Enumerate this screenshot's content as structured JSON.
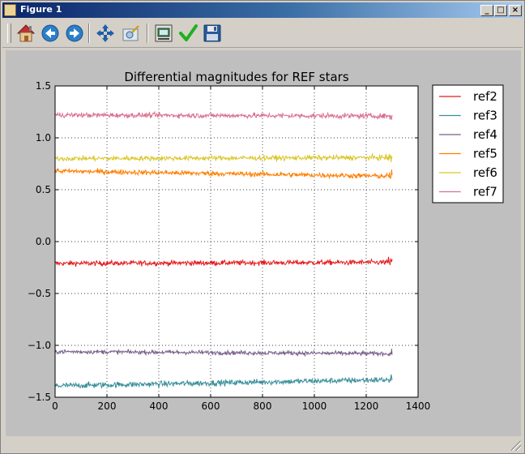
{
  "window": {
    "title": "Figure 1",
    "minimize_label": "_",
    "maximize_label": "□",
    "close_label": "×"
  },
  "toolbar": {
    "buttons": [
      {
        "name": "home-button",
        "icon": "home-icon"
      },
      {
        "name": "back-button",
        "icon": "back-arrow-icon"
      },
      {
        "name": "forward-button",
        "icon": "forward-arrow-icon"
      },
      {
        "name": "pan-button",
        "icon": "move-icon"
      },
      {
        "name": "zoom-button",
        "icon": "zoom-rect-icon"
      },
      {
        "name": "subplots-button",
        "icon": "subplots-icon"
      },
      {
        "name": "edit-button",
        "icon": "checkmark-icon"
      },
      {
        "name": "save-button",
        "icon": "floppy-disk-icon"
      }
    ]
  },
  "colors": {
    "canvas": "#bfbfbf",
    "axes_bg": "#ffffff"
  },
  "chart_data": {
    "type": "line",
    "title": "Differential magnitudes for REF stars",
    "xlabel": "",
    "ylabel": "",
    "xlim": [
      0,
      1400
    ],
    "ylim": [
      -1.5,
      1.5
    ],
    "xticks": [
      0,
      200,
      400,
      600,
      800,
      1000,
      1200,
      1400
    ],
    "yticks": [
      -1.5,
      -1.0,
      -0.5,
      0.0,
      0.5,
      1.0,
      1.5
    ],
    "xtick_labels": [
      "0",
      "200",
      "400",
      "600",
      "800",
      "1000",
      "1200",
      "1400"
    ],
    "ytick_labels": [
      "−1.5",
      "−1.0",
      "−0.5",
      "0.0",
      "0.5",
      "1.0",
      "1.5"
    ],
    "grid": true,
    "legend_position": "outside-top-right",
    "n_points": 1300,
    "series": [
      {
        "name": "ref2",
        "color": "#e41a1c",
        "start": -0.21,
        "end": -0.2,
        "noise": 0.012
      },
      {
        "name": "ref3",
        "color": "#3a8f9a",
        "start": -1.39,
        "end": -1.33,
        "noise": 0.014
      },
      {
        "name": "ref4",
        "color": "#7a5f8a",
        "start": -1.06,
        "end": -1.08,
        "noise": 0.01
      },
      {
        "name": "ref5",
        "color": "#ff7f00",
        "start": 0.68,
        "end": 0.63,
        "noise": 0.012
      },
      {
        "name": "ref6",
        "color": "#d9c72a",
        "start": 0.8,
        "end": 0.81,
        "noise": 0.012
      },
      {
        "name": "ref7",
        "color": "#d9708f",
        "start": 1.22,
        "end": 1.21,
        "noise": 0.012
      }
    ]
  }
}
